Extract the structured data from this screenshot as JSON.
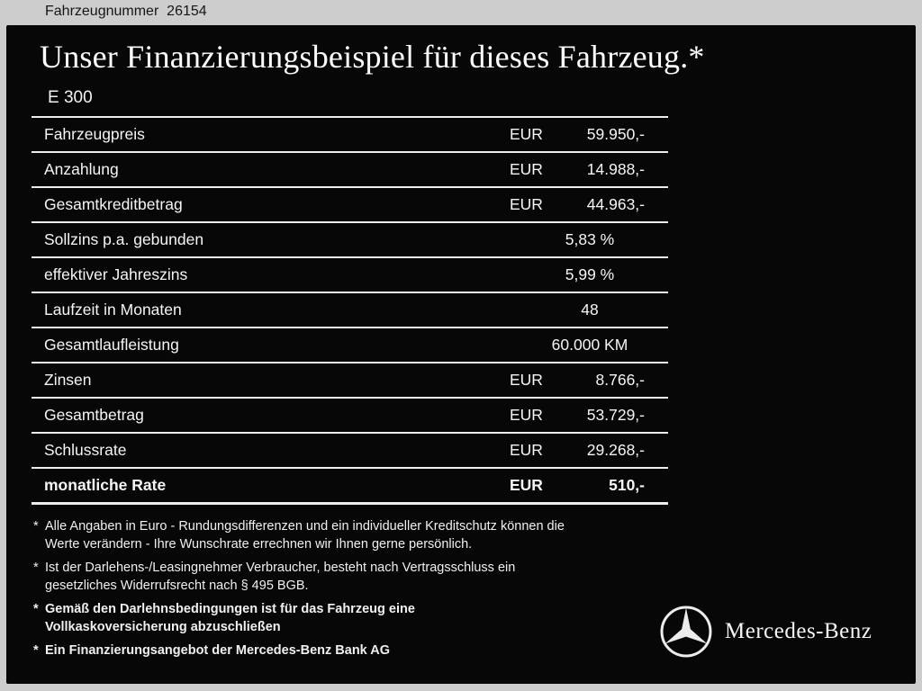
{
  "frame": {
    "vehicle_number": "Fahrzeugnummer  26154"
  },
  "title": "Unser Finanzierungsbeispiel für dieses Fahrzeug.*",
  "model": "E 300",
  "table": {
    "rows": [
      {
        "label": "Fahrzeugpreis",
        "currency": "EUR",
        "value": "59.950,-"
      },
      {
        "label": "Anzahlung",
        "currency": "EUR",
        "value": "14.988,-"
      },
      {
        "label": "Gesamtkreditbetrag",
        "currency": "EUR",
        "value": "44.963,-"
      },
      {
        "label": "Sollzins p.a. gebunden",
        "value": "5,83 %"
      },
      {
        "label": "effektiver Jahreszins",
        "value": "5,99 %"
      },
      {
        "label": "Laufzeit in Monaten",
        "value": "48"
      },
      {
        "label": "Gesamtlaufleistung",
        "value": "60.000 KM"
      },
      {
        "label": "Zinsen",
        "currency": "EUR",
        "value": "8.766,-"
      },
      {
        "label": "Gesamtbetrag",
        "currency": "EUR",
        "value": "53.729,-"
      },
      {
        "label": "Schlussrate",
        "currency": "EUR",
        "value": "29.268,-"
      },
      {
        "label": "monatliche Rate",
        "currency": "EUR",
        "value": "510,-",
        "bold": true
      }
    ]
  },
  "footnote_marker": "*",
  "footnotes": [
    {
      "text": "Alle Angaben in Euro - Rundungsdifferenzen und ein individueller Kreditschutz können die\nWerte verändern - Ihre Wunschrate errechnen wir Ihnen gerne persönlich.",
      "bold": false
    },
    {
      "text": "Ist der Darlehens-/Leasingnehmer Verbraucher, besteht nach Vertragsschluss ein\ngesetzliches Widerrufsrecht nach § 495 BGB.",
      "bold": false
    },
    {
      "text": "Gemäß den Darlehnsbedingungen ist für das Fahrzeug eine\nVollkaskoversicherung abzuschließen",
      "bold": true
    },
    {
      "text": "Ein Finanzierungsangebot der Mercedes-Benz Bank AG",
      "bold": true
    }
  ],
  "brand": {
    "name": "Mercedes-Benz",
    "logo_icon": "mercedes-star-icon"
  },
  "colors": {
    "frame_background": "#cdcdcd",
    "panel_background": "#070707",
    "text": "#f5f5f5",
    "rule_lines": "#ededed"
  }
}
